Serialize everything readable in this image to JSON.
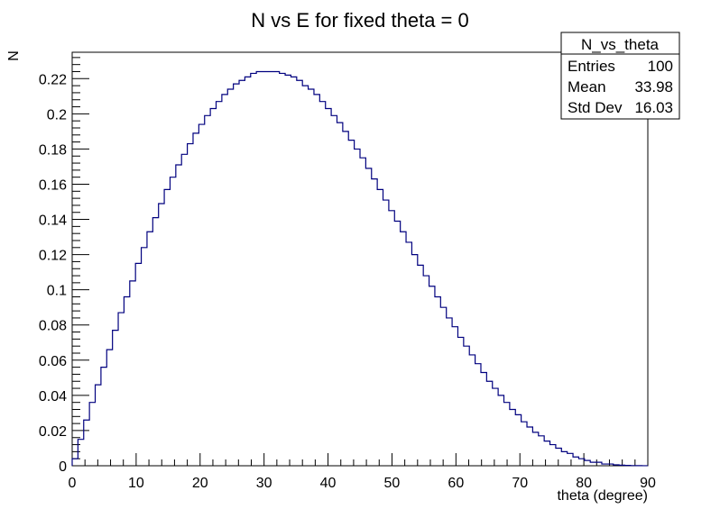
{
  "chart_data": {
    "type": "histogram",
    "title": "N vs E for fixed theta = 0",
    "xlabel": "theta (degree)",
    "ylabel": "N",
    "xlim": [
      0,
      90
    ],
    "ylim": [
      0,
      0.235
    ],
    "grid": false,
    "line_color": "#00007f",
    "bin_width": 0.9,
    "x_ticks": [
      0,
      10,
      20,
      30,
      40,
      50,
      60,
      70,
      80,
      90
    ],
    "x_tick_labels": [
      "0",
      "10",
      "20",
      "30",
      "40",
      "50",
      "60",
      "70",
      "80",
      "90"
    ],
    "y_ticks": [
      0,
      0.02,
      0.04,
      0.06,
      0.08,
      0.1,
      0.12,
      0.14,
      0.16,
      0.18,
      0.2,
      0.22
    ],
    "y_tick_labels": [
      "0",
      "0.02",
      "0.04",
      "0.06",
      "0.08",
      "0.1",
      "0.12",
      "0.14",
      "0.16",
      "0.18",
      "0.2",
      "0.22"
    ],
    "values": [
      0.004,
      0.015,
      0.026,
      0.036,
      0.046,
      0.056,
      0.066,
      0.077,
      0.087,
      0.096,
      0.105,
      0.115,
      0.124,
      0.133,
      0.141,
      0.149,
      0.157,
      0.164,
      0.171,
      0.177,
      0.183,
      0.189,
      0.194,
      0.199,
      0.203,
      0.207,
      0.211,
      0.214,
      0.217,
      0.219,
      0.221,
      0.223,
      0.224,
      0.224,
      0.224,
      0.224,
      0.223,
      0.222,
      0.221,
      0.219,
      0.216,
      0.214,
      0.211,
      0.207,
      0.203,
      0.199,
      0.195,
      0.19,
      0.185,
      0.18,
      0.175,
      0.169,
      0.163,
      0.157,
      0.151,
      0.145,
      0.139,
      0.133,
      0.127,
      0.12,
      0.114,
      0.108,
      0.102,
      0.096,
      0.09,
      0.084,
      0.079,
      0.073,
      0.068,
      0.063,
      0.058,
      0.053,
      0.048,
      0.044,
      0.04,
      0.036,
      0.032,
      0.029,
      0.025,
      0.022,
      0.019,
      0.017,
      0.014,
      0.012,
      0.01,
      0.008,
      0.007,
      0.005,
      0.004,
      0.003,
      0.002,
      0.002,
      0.001,
      0.001,
      0.0005,
      0.0003,
      0.0002,
      0.0001,
      5e-05,
      2e-05
    ],
    "stats_box": {
      "title": "N_vs_theta",
      "rows": [
        {
          "label": "Entries",
          "value": "100"
        },
        {
          "label": "Mean",
          "value": "33.98"
        },
        {
          "label": "Std Dev",
          "value": "16.03"
        }
      ]
    }
  }
}
